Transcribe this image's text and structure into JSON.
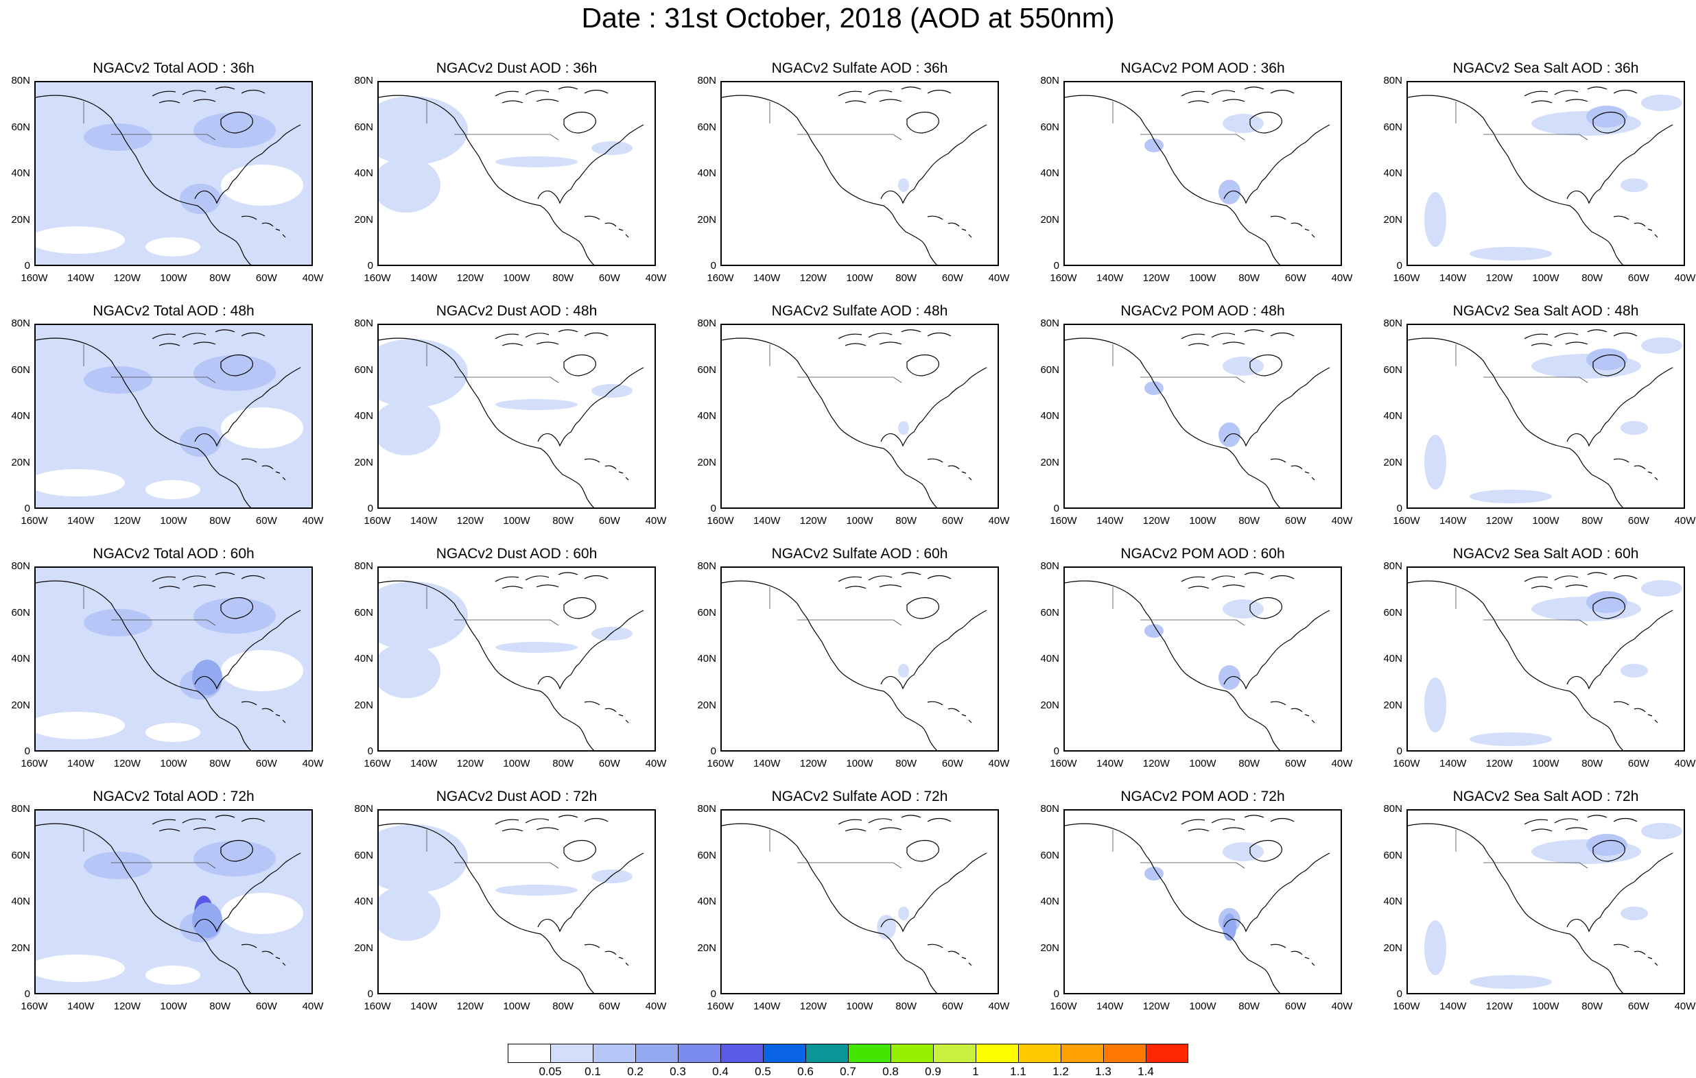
{
  "title": "Date : 31st October, 2018 (AOD at 550nm)",
  "lat_ticks": [
    "80N",
    "60N",
    "40N",
    "20N",
    "0"
  ],
  "lon_ticks": [
    "160W",
    "140W",
    "120W",
    "100W",
    "80W",
    "60W",
    "40W"
  ],
  "rows": [
    {
      "panels": [
        {
          "title": "NGACv2 Total AOD : 36h",
          "product": "total"
        },
        {
          "title": "NGACv2 Dust AOD : 36h",
          "product": "dust"
        },
        {
          "title": "NGACv2 Sulfate AOD : 36h",
          "product": "sulfate"
        },
        {
          "title": "NGACv2 POM AOD : 36h",
          "product": "pom"
        },
        {
          "title": "NGACv2 Sea Salt AOD : 36h",
          "product": "seasalt"
        }
      ]
    },
    {
      "panels": [
        {
          "title": "NGACv2 Total AOD : 48h",
          "product": "total"
        },
        {
          "title": "NGACv2 Dust AOD : 48h",
          "product": "dust"
        },
        {
          "title": "NGACv2 Sulfate AOD : 48h",
          "product": "sulfate"
        },
        {
          "title": "NGACv2 POM AOD : 48h",
          "product": "pom"
        },
        {
          "title": "NGACv2 Sea Salt AOD : 48h",
          "product": "seasalt"
        }
      ]
    },
    {
      "panels": [
        {
          "title": "NGACv2 Total AOD : 60h",
          "product": "total"
        },
        {
          "title": "NGACv2 Dust AOD : 60h",
          "product": "dust"
        },
        {
          "title": "NGACv2 Sulfate AOD : 60h",
          "product": "sulfate"
        },
        {
          "title": "NGACv2 POM AOD : 60h",
          "product": "pom"
        },
        {
          "title": "NGACv2 Sea Salt AOD : 60h",
          "product": "seasalt"
        }
      ]
    },
    {
      "panels": [
        {
          "title": "NGACv2 Total AOD : 72h",
          "product": "total"
        },
        {
          "title": "NGACv2 Dust AOD : 72h",
          "product": "dust"
        },
        {
          "title": "NGACv2 Sulfate AOD : 72h",
          "product": "sulfate"
        },
        {
          "title": "NGACv2 POM AOD : 72h",
          "product": "pom"
        },
        {
          "title": "NGACv2 Sea Salt  AOD : 72h",
          "product": "seasalt"
        }
      ]
    }
  ],
  "colorbar": {
    "colors": [
      "#ffffff",
      "#d3dffa",
      "#b6c6f6",
      "#93aaf1",
      "#7a8bef",
      "#5a5ae8",
      "#0a64e6",
      "#0a9696",
      "#44e600",
      "#96f000",
      "#c8f03c",
      "#ffff00",
      "#ffc800",
      "#ffa000",
      "#ff7800",
      "#ff2800"
    ],
    "labels": [
      "0.05",
      "0.1",
      "0.2",
      "0.3",
      "0.4",
      "0.5",
      "0.6",
      "0.7",
      "0.8",
      "0.9",
      "1",
      "1.1",
      "1.2",
      "1.3",
      "1.4"
    ]
  },
  "colors": {
    "ocean_light": "#d3dffa",
    "ocean_mid": "#b6c6f6",
    "high": "#93aaf1",
    "peak": "#5a5ae8",
    "coast": "#000000"
  }
}
